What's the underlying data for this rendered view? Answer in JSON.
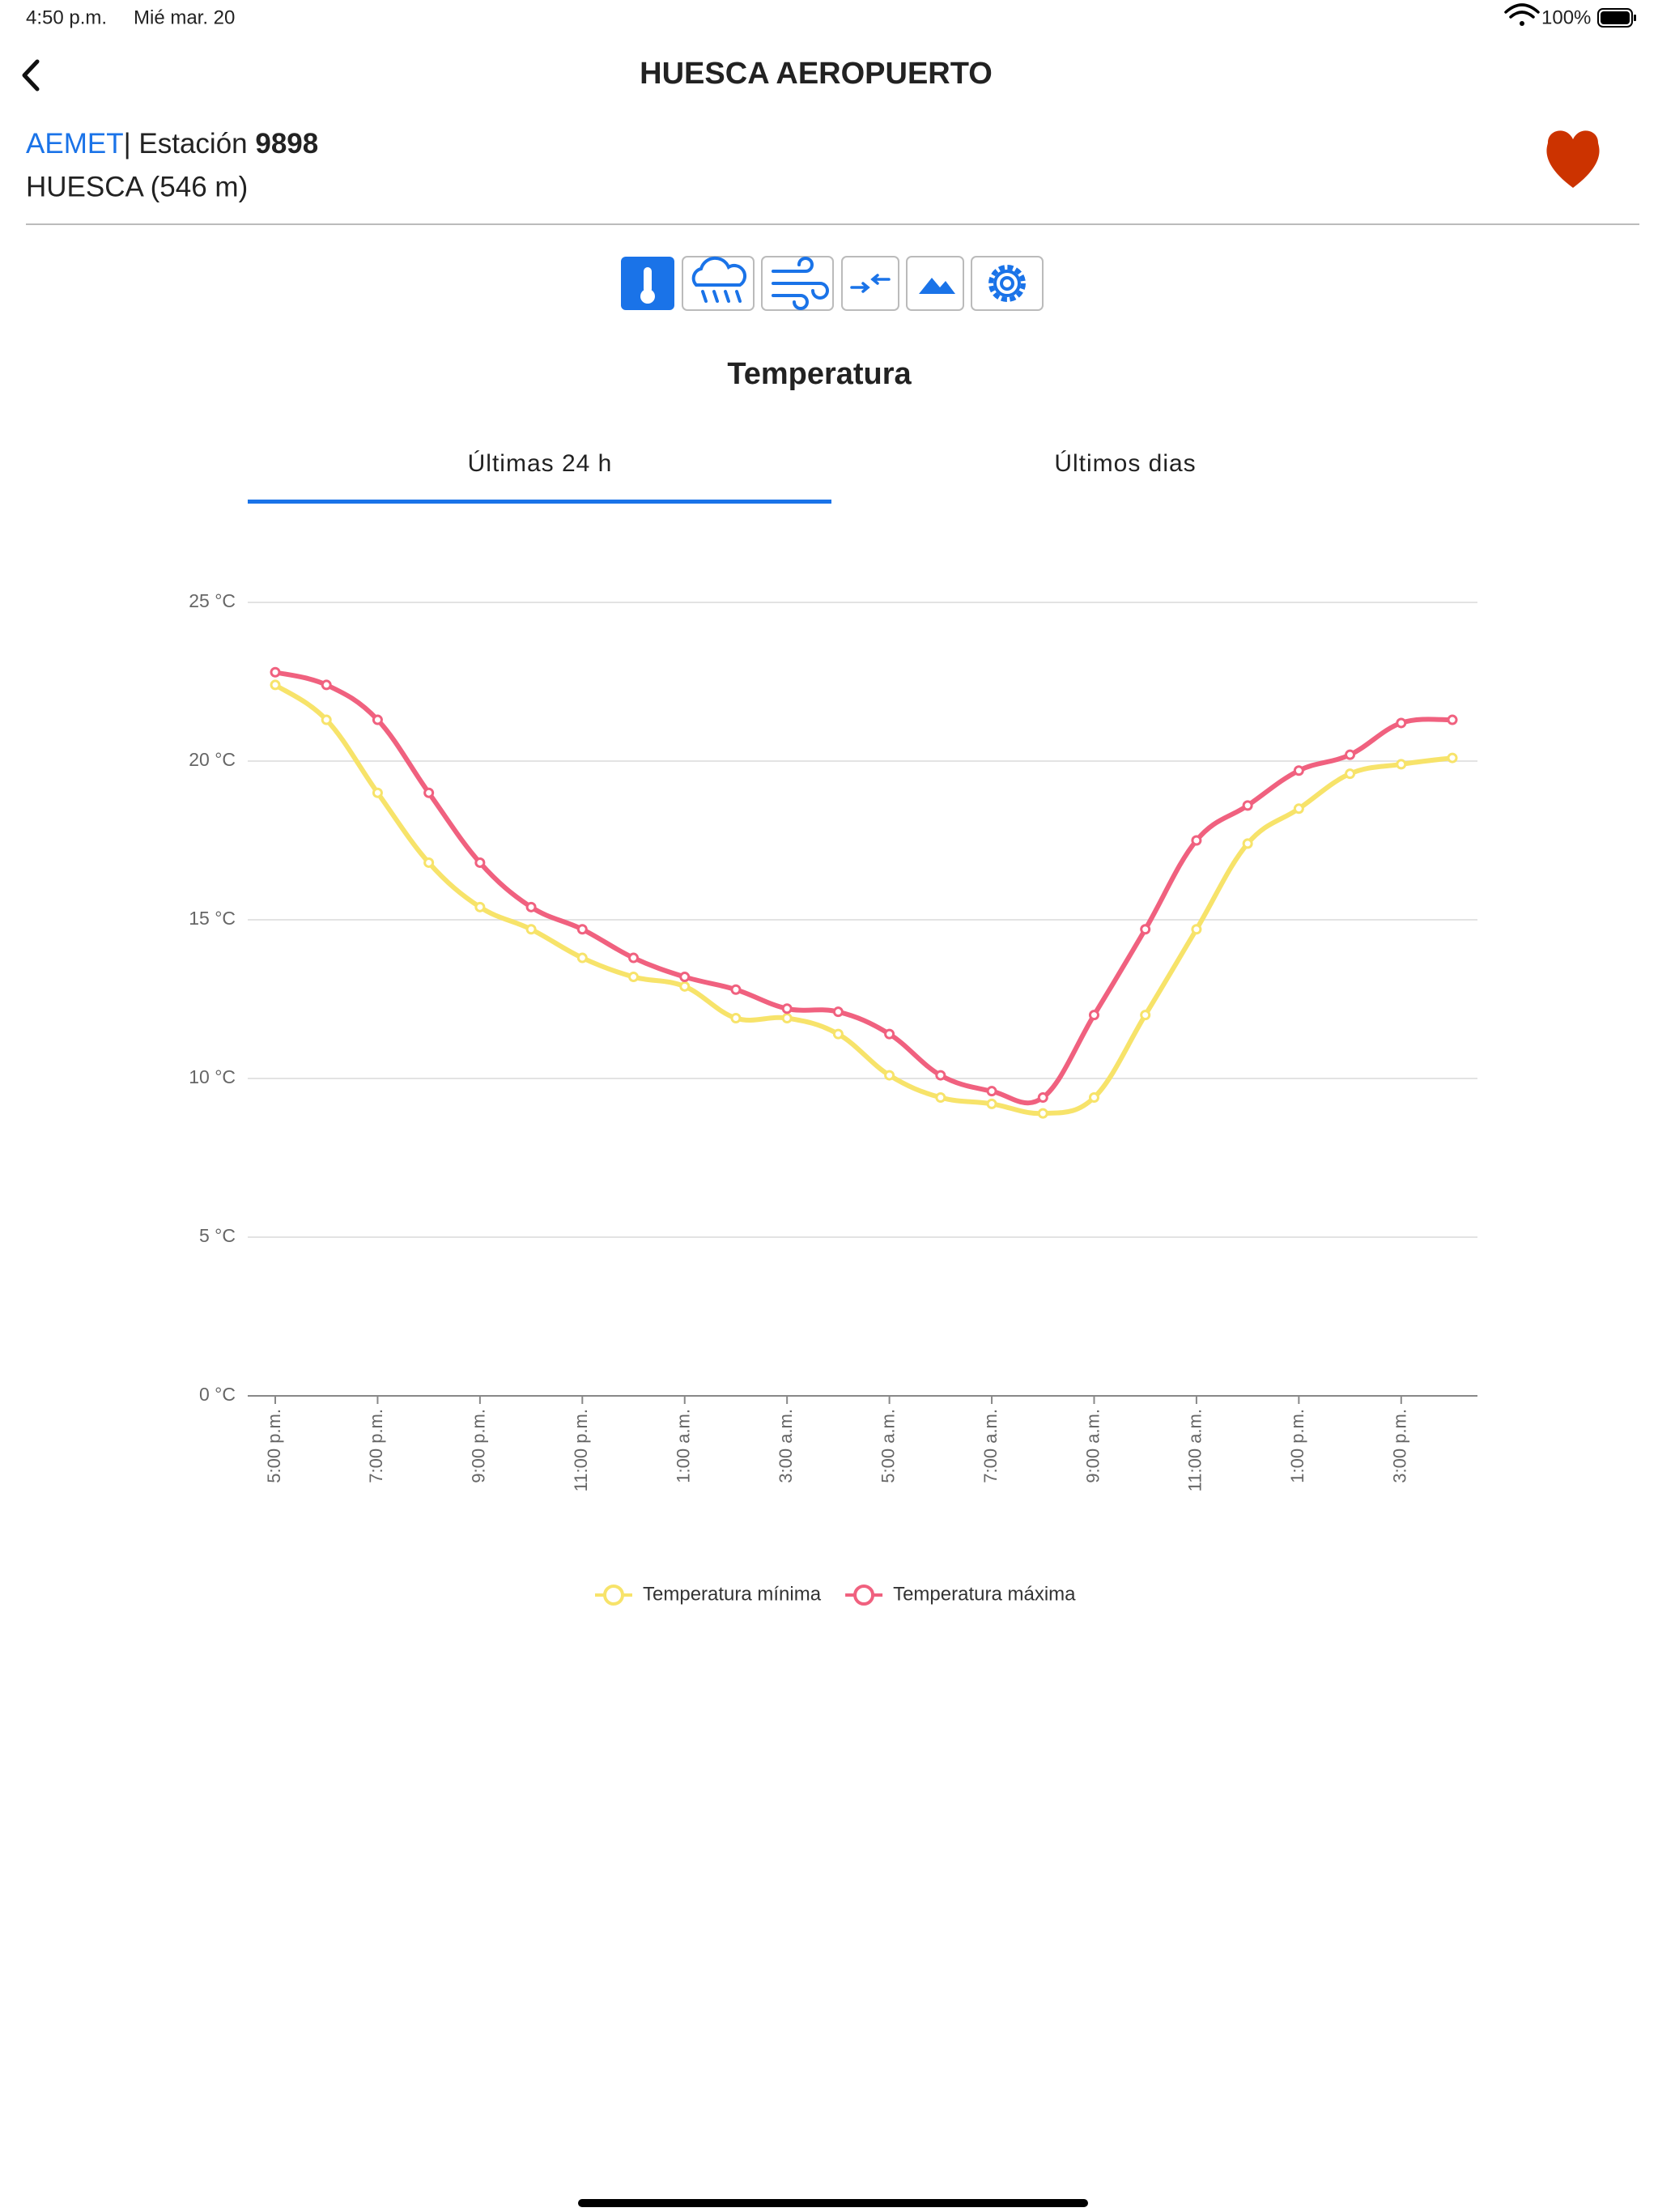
{
  "status_bar": {
    "time": "4:50 p.m.",
    "date": "Mié mar. 20",
    "battery": "100%"
  },
  "header": {
    "title": "HUESCA AEROPUERTO"
  },
  "station": {
    "source": "AEMET",
    "separator": "| Estación ",
    "number": "9898",
    "location": "HUESCA (546 m)"
  },
  "section_title": "Temperatura",
  "tabs": [
    "Últimas 24 h",
    "Últimos dias"
  ],
  "chart_data": {
    "type": "line",
    "categories": [
      "5:00 p.m.",
      null,
      "7:00 p.m.",
      null,
      "9:00 p.m.",
      null,
      "11:00 p.m.",
      null,
      "1:00 a.m.",
      null,
      "3:00 a.m.",
      null,
      "5:00 a.m.",
      null,
      "7:00 a.m.",
      null,
      "9:00 a.m.",
      null,
      "11:00 a.m.",
      null,
      "1:00 p.m.",
      null,
      "3:00 p.m.",
      null
    ],
    "series": [
      {
        "name": "Temperatura mínima",
        "color": "#f7e36a",
        "values": [
          22.4,
          21.3,
          19.0,
          16.8,
          15.4,
          14.7,
          13.8,
          13.2,
          12.9,
          11.9,
          11.9,
          11.4,
          10.1,
          9.4,
          9.2,
          8.9,
          9.4,
          12.0,
          14.7,
          17.4,
          18.5,
          19.6,
          19.9,
          20.1
        ]
      },
      {
        "name": "Temperatura máxima",
        "color": "#f0617f",
        "values": [
          22.8,
          22.4,
          21.3,
          19.0,
          16.8,
          15.4,
          14.7,
          13.8,
          13.2,
          12.8,
          12.2,
          12.1,
          11.4,
          10.1,
          9.6,
          9.4,
          12.0,
          14.7,
          17.5,
          18.6,
          19.7,
          20.2,
          21.2,
          21.3
        ]
      }
    ],
    "ylim": [
      0,
      25
    ],
    "yticks": [
      {
        "value": 0,
        "label": "0 °C"
      },
      {
        "value": 5,
        "label": "5 °C"
      },
      {
        "value": 10,
        "label": "10 °C"
      },
      {
        "value": 15,
        "label": "15 °C"
      },
      {
        "value": 20,
        "label": "20 °C"
      },
      {
        "value": 25,
        "label": "25 °C"
      }
    ],
    "grid": true,
    "legend": "bottom"
  }
}
